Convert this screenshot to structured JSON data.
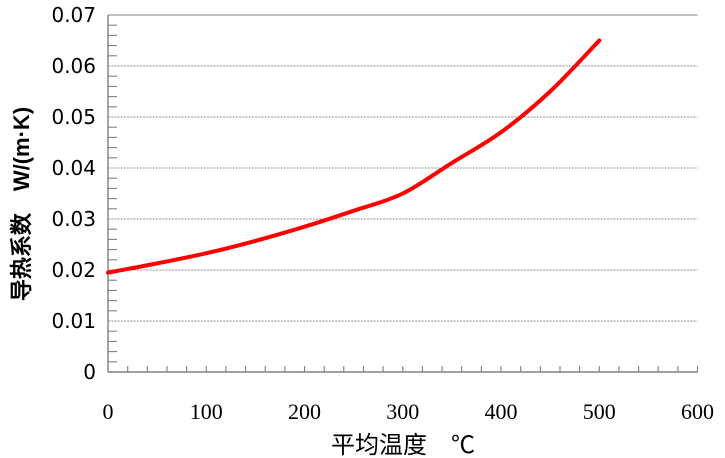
{
  "chart_data": {
    "type": "line",
    "title": "",
    "xlabel": "平均温度　℃",
    "ylabel": "导热系数　W/(m·K)",
    "x": [
      0,
      50,
      100,
      150,
      200,
      250,
      300,
      350,
      400,
      450,
      500
    ],
    "series": [
      {
        "name": "导热系数",
        "color": "#ff0000",
        "values": [
          0.0195,
          0.0213,
          0.0233,
          0.0257,
          0.0285,
          0.0316,
          0.035,
          0.041,
          0.047,
          0.055,
          0.065
        ]
      }
    ],
    "xlim": [
      0,
      600
    ],
    "ylim": [
      0,
      0.07
    ],
    "x_tick_labels": [
      "0",
      "100",
      "200",
      "300",
      "400",
      "500",
      "600"
    ],
    "x_tick_values": [
      0,
      100,
      200,
      300,
      400,
      500,
      600
    ],
    "x_minor_step": 20,
    "y_tick_labels": [
      "0",
      "0.01",
      "0.02",
      "0.03",
      "0.04",
      "0.05",
      "0.06",
      "0.07"
    ],
    "y_tick_values": [
      0,
      0.01,
      0.02,
      0.03,
      0.04,
      0.05,
      0.06,
      0.07
    ],
    "y_minor_step": 0.002,
    "grid": "major-horizontal",
    "legend": "none",
    "line_width": 4,
    "colors": {
      "line": "#ff0000",
      "grid": "#8c8c8c",
      "axis": "#808080",
      "text": "#000000",
      "background": "#ffffff"
    }
  }
}
